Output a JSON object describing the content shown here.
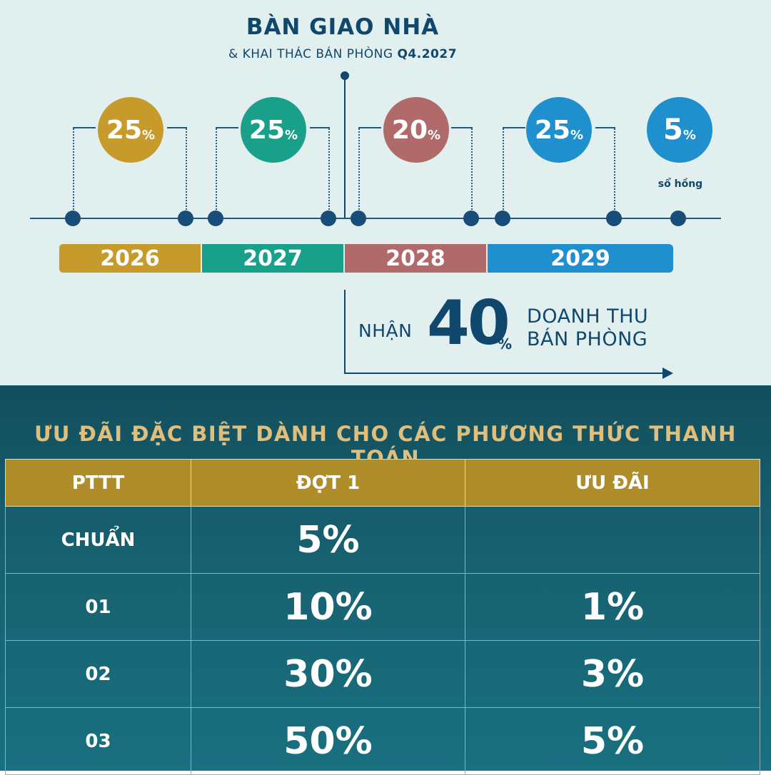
{
  "header": {
    "title": "BÀN GIAO NHÀ",
    "subtitle_prefix": "& KHAI THÁC BÁN PHÒNG ",
    "subtitle_bold": "Q4.2027"
  },
  "milestones": [
    {
      "num": "25",
      "pct": "%",
      "color": "#c79a2c"
    },
    {
      "num": "25",
      "pct": "%",
      "color": "#19a08a"
    },
    {
      "num": "20",
      "pct": "%",
      "color": "#b06a6a"
    },
    {
      "num": "25",
      "pct": "%",
      "color": "#1f8fcd"
    },
    {
      "num": "5",
      "pct": "%",
      "color": "#1f8fcd"
    }
  ],
  "final_note": "sổ hồng",
  "years": [
    {
      "label": "2026",
      "color": "#c79a2c"
    },
    {
      "label": "2027",
      "color": "#19a08a"
    },
    {
      "label": "2028",
      "color": "#b06a6a"
    },
    {
      "label": "2029",
      "color": "#1f8fcd"
    }
  ],
  "revenue": {
    "prefix": "NHẬN",
    "value": "40",
    "pct": "%",
    "line1": "DOANH THU",
    "line2": "BÁN PHÒNG"
  },
  "offers": {
    "title": "ƯU ĐÃI ĐẶC BIỆT DÀNH CHO CÁC PHƯƠNG THỨC THANH TOÁN",
    "headers": [
      "PTTT",
      "ĐỢT 1",
      "ƯU ĐÃI"
    ],
    "rows": [
      {
        "pttt": "CHUẨN",
        "dot1": "5%",
        "uudai": ""
      },
      {
        "pttt": "01",
        "dot1": "10%",
        "uudai": "1%"
      },
      {
        "pttt": "02",
        "dot1": "30%",
        "uudai": "3%"
      },
      {
        "pttt": "03",
        "dot1": "50%",
        "uudai": "5%"
      }
    ]
  }
}
